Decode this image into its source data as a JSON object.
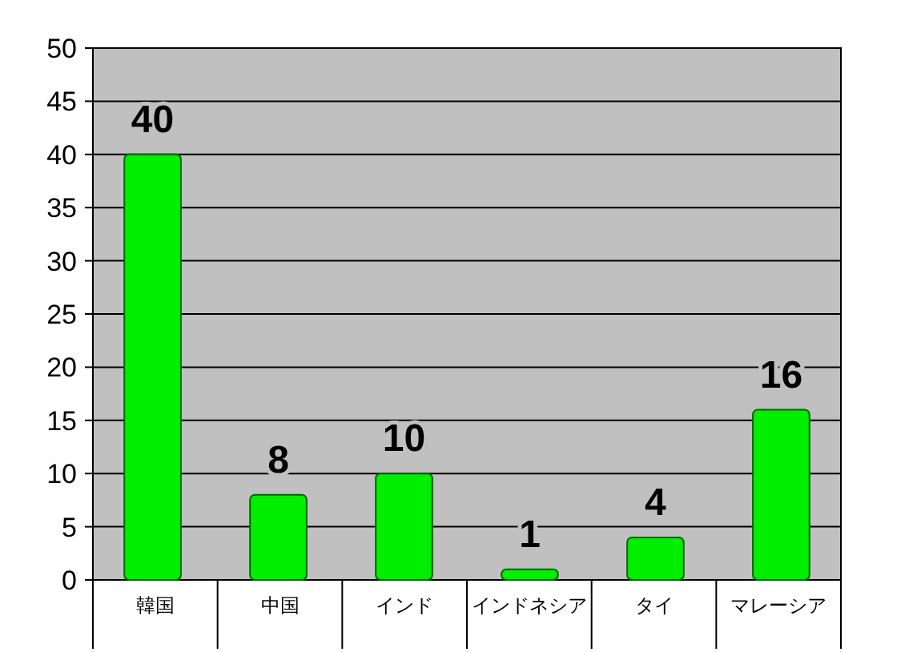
{
  "chart_data": {
    "type": "bar",
    "categories": [
      "韓国",
      "中国",
      "インド",
      "インドネシア",
      "タイ",
      "マレーシア"
    ],
    "values": [
      40,
      8,
      10,
      1,
      4,
      16
    ],
    "color": "#00ee00",
    "ylim": [
      0,
      50
    ],
    "yticks": [
      0,
      5,
      10,
      15,
      20,
      25,
      30,
      35,
      40,
      45,
      50
    ],
    "grid": "y",
    "data_labels": true
  }
}
